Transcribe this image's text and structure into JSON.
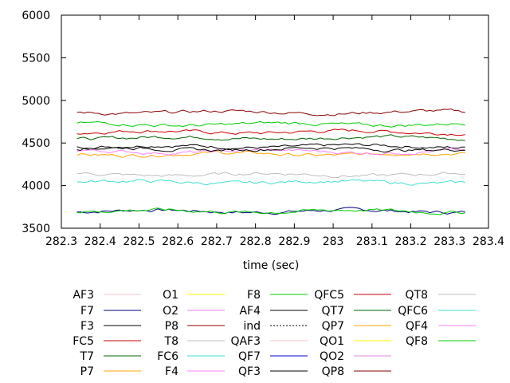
{
  "chart_data": {
    "type": "line",
    "xlabel": "time (sec)",
    "ylabel": "",
    "title": "",
    "xlim": [
      282.3,
      283.4
    ],
    "ylim": [
      3500,
      6000
    ],
    "x_ticks": [
      282.3,
      282.4,
      282.5,
      282.6,
      282.7,
      282.8,
      282.9,
      283,
      283.1,
      283.2,
      283.3,
      283.4
    ],
    "x_tick_labels": [
      "282.3",
      "282.4",
      "282.5",
      "282.6",
      "282.7",
      "282.8",
      "282.9",
      "283",
      "283.1",
      "283.2",
      "283.3",
      "283.4"
    ],
    "y_ticks": [
      3500,
      4000,
      4500,
      5000,
      5500,
      6000
    ],
    "y_tick_labels": [
      "3500",
      "4000",
      "4500",
      "5000",
      "5500",
      "6000"
    ],
    "grid": false,
    "legend_position": "bottom",
    "x_range_data": [
      282.34,
      283.34
    ],
    "series": [
      {
        "name": "AF3",
        "color": "#ffc0cb",
        "base": null,
        "dash": false
      },
      {
        "name": "F7",
        "color": "#000080",
        "base": 3700,
        "dash": false
      },
      {
        "name": "F3",
        "color": "#000000",
        "base": 4460,
        "dash": false
      },
      {
        "name": "FC5",
        "color": "#cc0000",
        "base": 4630,
        "dash": false
      },
      {
        "name": "T7",
        "color": "#006400",
        "base": 4560,
        "dash": false
      },
      {
        "name": "P7",
        "color": "#ffa500",
        "base": 4370,
        "dash": false
      },
      {
        "name": "O1",
        "color": "#ffff00",
        "base": null,
        "dash": false
      },
      {
        "name": "O2",
        "color": "#ee82ee",
        "base": null,
        "dash": false
      },
      {
        "name": "P8",
        "color": "#8b0000",
        "base": 4860,
        "dash": false
      },
      {
        "name": "T8",
        "color": "#bebebe",
        "base": 4130,
        "dash": false
      },
      {
        "name": "FC6",
        "color": "#40e0d0",
        "base": 4040,
        "dash": false
      },
      {
        "name": "F4",
        "color": "#ff80ff",
        "base": 4400,
        "dash": false
      },
      {
        "name": "F8",
        "color": "#00cc00",
        "base": 4720,
        "dash": false
      },
      {
        "name": "AF4",
        "color": "#000000",
        "base": 4430,
        "dash": false
      },
      {
        "name": "ind",
        "color": "#000000",
        "base": null,
        "dash": true
      },
      {
        "name": "QAF3",
        "color": "#ffc0cb",
        "base": null,
        "dash": false
      },
      {
        "name": "QF7",
        "color": "#0000cc",
        "base": null,
        "dash": false
      },
      {
        "name": "QF3",
        "color": "#000000",
        "base": null,
        "dash": false
      },
      {
        "name": "QFC5",
        "color": "#cc0000",
        "base": null,
        "dash": false
      },
      {
        "name": "QT7",
        "color": "#006400",
        "base": null,
        "dash": false
      },
      {
        "name": "QP7",
        "color": "#ffa500",
        "base": null,
        "dash": false
      },
      {
        "name": "QO1",
        "color": "#ffff00",
        "base": null,
        "dash": false
      },
      {
        "name": "QO2",
        "color": "#dd88dd",
        "base": null,
        "dash": false
      },
      {
        "name": "QP8",
        "color": "#8b0000",
        "base": null,
        "dash": false
      },
      {
        "name": "QT8",
        "color": "#bebebe",
        "base": null,
        "dash": false
      },
      {
        "name": "QFC6",
        "color": "#40e0d0",
        "base": null,
        "dash": false
      },
      {
        "name": "QF4",
        "color": "#ff80ff",
        "base": null,
        "dash": false
      },
      {
        "name": "QF8",
        "color": "#00cc00",
        "base": 3700,
        "dash": false
      }
    ]
  }
}
